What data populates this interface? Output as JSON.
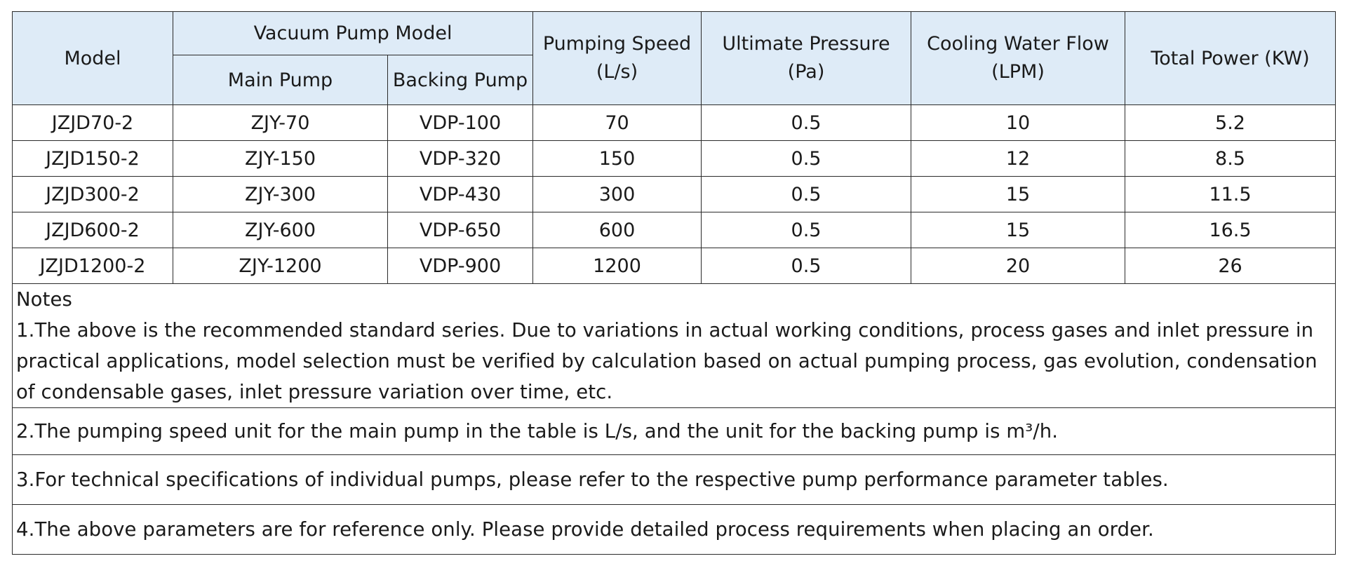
{
  "header": {
    "model": "Model",
    "vacuum_pump_model": "Vacuum Pump Model",
    "main_pump": "Main Pump",
    "backing_pump": "Backing Pump",
    "pumping_speed": "Pumping Speed",
    "pumping_speed_unit": "(L/s)",
    "ultimate_pressure": "Ultimate Pressure",
    "ultimate_pressure_unit": "(Pa)",
    "cooling_water_flow": "Cooling Water Flow",
    "cooling_water_flow_unit": "(LPM)",
    "total_power": "Total Power (KW)"
  },
  "rows": [
    {
      "model": "JZJD70-2",
      "main_pump": "ZJY-70",
      "backing_pump": "VDP-100",
      "pumping_speed": "70",
      "ultimate_pressure": "0.5",
      "cooling_water_flow": "10",
      "total_power": "5.2"
    },
    {
      "model": "JZJD150-2",
      "main_pump": "ZJY-150",
      "backing_pump": "VDP-320",
      "pumping_speed": "150",
      "ultimate_pressure": "0.5",
      "cooling_water_flow": "12",
      "total_power": "8.5"
    },
    {
      "model": "JZJD300-2",
      "main_pump": "ZJY-300",
      "backing_pump": "VDP-430",
      "pumping_speed": "300",
      "ultimate_pressure": "0.5",
      "cooling_water_flow": "15",
      "total_power": "11.5"
    },
    {
      "model": "JZJD600-2",
      "main_pump": "ZJY-600",
      "backing_pump": "VDP-650",
      "pumping_speed": "600",
      "ultimate_pressure": "0.5",
      "cooling_water_flow": "15",
      "total_power": "16.5"
    },
    {
      "model": "JZJD1200-2",
      "main_pump": "ZJY-1200",
      "backing_pump": "VDP-900",
      "pumping_speed": "1200",
      "ultimate_pressure": "0.5",
      "cooling_water_flow": "20",
      "total_power": "26"
    }
  ],
  "notes": {
    "title": "Notes",
    "items": [
      "1.The above is the recommended standard series. Due to variations in actual working conditions, process gases and inlet pressure in practical applications, model selection must be verified by calculation based on actual pumping process, gas evolution, condensation of condensable gases, inlet pressure variation over time, etc.",
      "2.The pumping speed unit for the main pump in the table is L/s, and the unit for the backing pump is m³/h.",
      "3.For technical specifications of individual pumps, please refer to the respective pump performance parameter tables.",
      "4.The above parameters are for reference only. Please provide detailed process requirements when placing an order."
    ]
  },
  "colors": {
    "header_bg": "#deebf7",
    "border": "#2b2b2b",
    "text": "#1a1a1a"
  }
}
